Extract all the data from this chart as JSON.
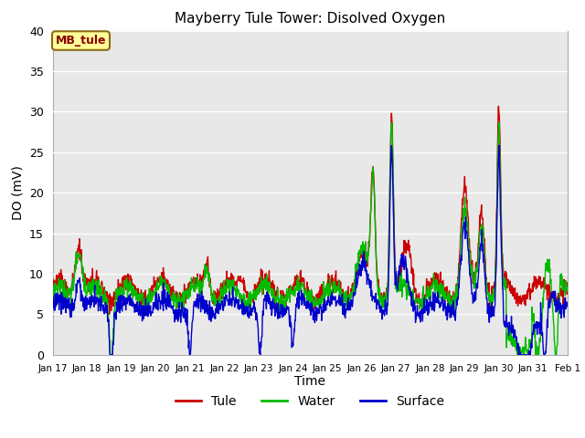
{
  "title": "Mayberry Tule Tower: Disolved Oxygen",
  "ylabel": "DO (mV)",
  "xlabel": "Time",
  "legend_label": "MB_tule",
  "ylim": [
    0,
    40
  ],
  "xlim": [
    0,
    360
  ],
  "x_tick_labels": [
    "Jan 17",
    "Jan 18",
    "Jan 19",
    "Jan 20",
    "Jan 21",
    "Jan 22",
    "Jan 23",
    "Jan 24",
    "Jan 25",
    "Jan 26",
    "Jan 27",
    "Jan 28",
    "Jan 29",
    "Jan 30",
    "Jan 31",
    "Feb 1"
  ],
  "x_tick_positions": [
    0,
    24,
    48,
    72,
    96,
    120,
    144,
    168,
    192,
    216,
    240,
    264,
    288,
    312,
    336,
    360
  ],
  "background_color": "#e8e8e8",
  "line_colors": {
    "tule": "#cc0000",
    "water": "#00bb00",
    "surface": "#0000cc"
  },
  "line_width": 1.0,
  "legend_entries": [
    "Tule",
    "Water",
    "Surface"
  ],
  "legend_colors": [
    "#cc0000",
    "#00bb00",
    "#0000cc"
  ],
  "annotation_box_color": "#ffff99",
  "annotation_box_edge": "#8B6914",
  "annotation_text_color": "#8B0000",
  "annotation_text": "MB_tule",
  "figsize": [
    6.4,
    4.8
  ],
  "dpi": 100
}
